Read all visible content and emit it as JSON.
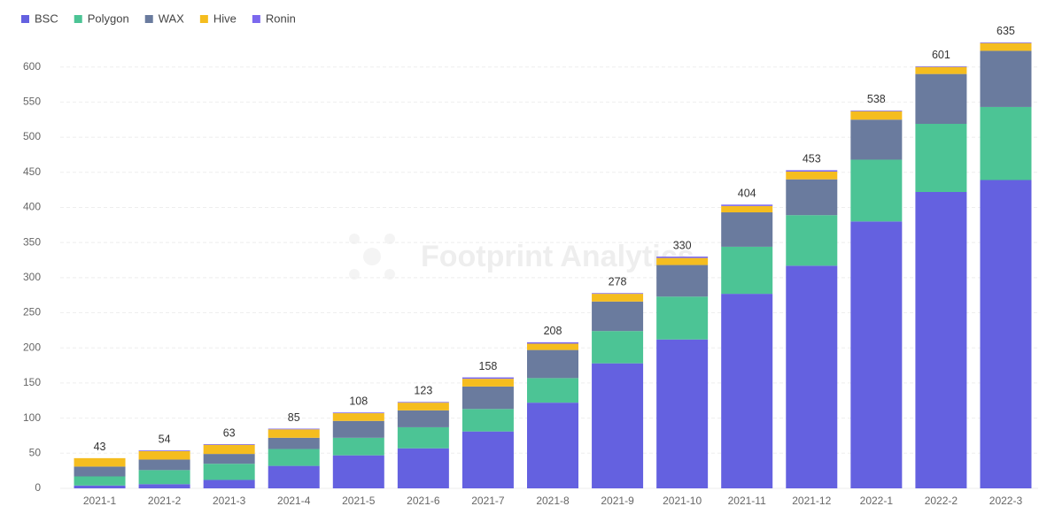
{
  "chart_data": {
    "type": "stacked-bar",
    "watermark": "Footprint Analytics",
    "categories": [
      "2021-1",
      "2021-2",
      "2021-3",
      "2021-4",
      "2021-5",
      "2021-6",
      "2021-7",
      "2021-8",
      "2021-9",
      "2021-10",
      "2021-11",
      "2021-12",
      "2022-1",
      "2022-2",
      "2022-3"
    ],
    "series": [
      {
        "name": "BSC",
        "color": "#6461e0",
        "values": [
          4,
          6,
          12,
          32,
          47,
          57,
          81,
          122,
          178,
          212,
          277,
          317,
          380,
          422,
          439
        ]
      },
      {
        "name": "Polygon",
        "color": "#4cc495",
        "values": [
          13,
          20,
          23,
          24,
          25,
          30,
          32,
          35,
          46,
          61,
          67,
          72,
          88,
          97,
          104
        ]
      },
      {
        "name": "WAX",
        "color": "#6a7b9e",
        "values": [
          14,
          15,
          14,
          16,
          24,
          24,
          32,
          40,
          42,
          45,
          49,
          51,
          57,
          71,
          80
        ]
      },
      {
        "name": "Hive",
        "color": "#f5bd1f",
        "values": [
          12,
          12,
          13,
          12,
          11,
          11,
          11,
          9,
          11,
          10,
          9,
          11,
          12,
          10,
          11
        ]
      },
      {
        "name": "Ronin",
        "color": "#7b68ee",
        "values": [
          0,
          1,
          1,
          1,
          1,
          1,
          2,
          2,
          1,
          2,
          2,
          2,
          1,
          1,
          1
        ]
      }
    ],
    "totals": [
      43,
      54,
      63,
      85,
      108,
      123,
      158,
      208,
      278,
      330,
      404,
      453,
      538,
      601,
      635
    ],
    "ylim": [
      0,
      650
    ],
    "yticks": [
      0,
      50,
      100,
      150,
      200,
      250,
      300,
      350,
      400,
      450,
      500,
      550,
      600
    ],
    "grid": true,
    "legend": "top-left"
  }
}
